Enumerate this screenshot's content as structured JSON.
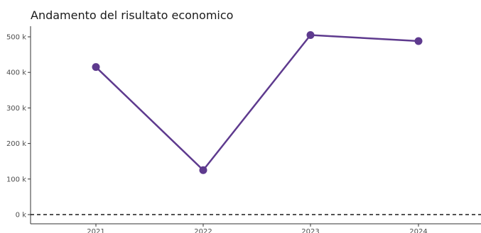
{
  "chart_data": {
    "type": "line",
    "title": "Andamento del risultato economico",
    "xlabel": "",
    "ylabel": "",
    "x": [
      "2021",
      "2022",
      "2023",
      "2024"
    ],
    "series": [
      {
        "values": [
          415000,
          125000,
          505000,
          488000
        ]
      }
    ],
    "y_ticks": [
      0,
      100000,
      200000,
      300000,
      400000,
      500000
    ],
    "y_tick_labels": [
      "0 k",
      "100 k",
      "200 k",
      "300 k",
      "400 k",
      "500 k"
    ],
    "ylim": [
      -25000,
      530000
    ],
    "reference_line": {
      "y": 0,
      "style": "dashed"
    },
    "grid": false,
    "legend": "none",
    "colors": {
      "line": "#5e3a8e",
      "point": "#5e3a8e",
      "reference": "#1a1a1a",
      "axis": "#333333"
    }
  }
}
